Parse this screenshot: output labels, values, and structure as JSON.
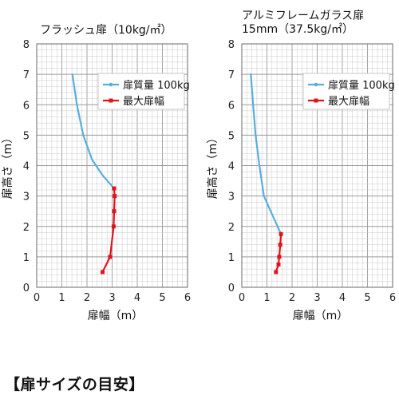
{
  "footer": {
    "label": "【扉サイズの目安】"
  },
  "chart_data": [
    {
      "type": "line",
      "title": [
        "フラッシュ扉（10kg/㎡）"
      ],
      "xlabel": "扉幅（m）",
      "ylabel": "扉高さ（m）",
      "xlim": [
        0,
        6
      ],
      "ylim": [
        0,
        8
      ],
      "xticks": [
        0,
        1,
        2,
        3,
        4,
        5,
        6
      ],
      "yticks": [
        0,
        1,
        2,
        3,
        4,
        5,
        6,
        7,
        8
      ],
      "grid": true,
      "legend": "top-right",
      "series": [
        {
          "name": "扉質量 100kg",
          "color": "#5aaedc",
          "marker": "none",
          "x": [
            1.42,
            1.6,
            1.85,
            2.2,
            2.6,
            3.08
          ],
          "y": [
            7.0,
            6.0,
            5.0,
            4.2,
            3.7,
            3.25
          ]
        },
        {
          "name": "最大扉幅",
          "color": "#e0141e",
          "marker": "square",
          "x": [
            3.08,
            3.1,
            3.08,
            3.06,
            2.92,
            2.62
          ],
          "y": [
            3.25,
            3.0,
            2.5,
            2.0,
            1.0,
            0.5
          ]
        }
      ]
    },
    {
      "type": "line",
      "title": [
        "アルミフレームガラス扉",
        "15mm（37.5kg/㎡）"
      ],
      "xlabel": "扉幅（m）",
      "ylabel": "扉高さ（m）",
      "xlim": [
        0,
        6
      ],
      "ylim": [
        0,
        8
      ],
      "xticks": [
        0,
        1,
        2,
        3,
        4,
        5,
        6
      ],
      "yticks": [
        0,
        1,
        2,
        3,
        4,
        5,
        6,
        7,
        8
      ],
      "grid": true,
      "legend": "top-right",
      "series": [
        {
          "name": "扉質量 100kg",
          "color": "#5aaedc",
          "marker": "none",
          "x": [
            0.36,
            0.45,
            0.55,
            0.7,
            0.88,
            1.15,
            1.56
          ],
          "y": [
            7.0,
            6.0,
            5.0,
            4.0,
            3.0,
            2.5,
            1.75
          ]
        },
        {
          "name": "最大扉幅",
          "color": "#e0141e",
          "marker": "square",
          "x": [
            1.56,
            1.53,
            1.49,
            1.46,
            1.36
          ],
          "y": [
            1.75,
            1.4,
            1.0,
            0.75,
            0.5
          ]
        }
      ]
    }
  ]
}
